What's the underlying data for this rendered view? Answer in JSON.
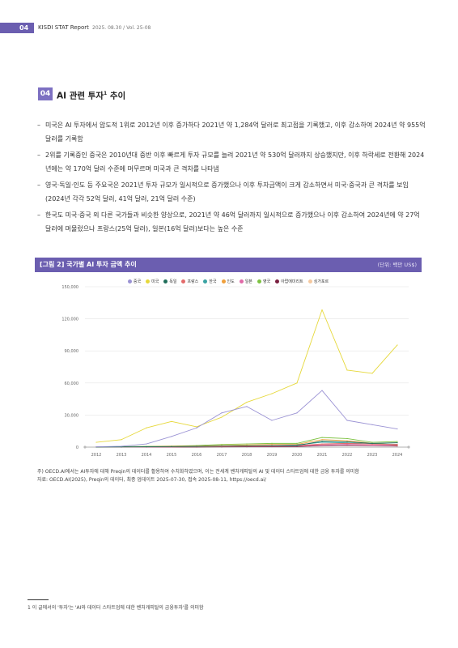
{
  "header": {
    "page_number": "04",
    "report": "KISDI STAT Report",
    "volume": "2025. 08.30 / Vol. 25-08"
  },
  "section": {
    "number": "04",
    "title": "AI 관련 투자",
    "title_sup": "1",
    "title_suffix": " 추이"
  },
  "bullets": [
    "미국은 AI 투자에서 압도적 1위로 2012년 이후 증가하다 2021년 약 1,284억 달러로 최고점을 기록했고, 이후 감소하여 2024년 약 955억 달러를 기록함",
    "2위를 기록중인 중국은 2010년대 중반 이후 빠르게 투자 규모를 늘려 2021년 약 530억 달러까지 상승했지만, 이후 하락세로 전환해 2024년에는 약 170억 달러 수준에 머무르며 미국과 큰 격차를 나타냄",
    "영국·독일·인도 등 주요국은 2021년 투자 규모가 일시적으로 증가했으나 이후 투자금액이 크게 감소하면서 미국·중국과 큰 격차를 보임(2024년 각각 52억 달러, 41억 달러, 21억 달러 수준)",
    "한국도 미국·중국 외 다른 국가들과 비슷한 양상으로, 2021년 약 46억 달러까지 일시적으로 증가했으나 이후 감소하여 2024년에 약 27억 달러에 머물렀으나 프랑스(25억 달러), 일본(16억 달러)보다는 높은 수준"
  ],
  "figure": {
    "label": "[그림 2]  국가별 AI 투자 금액 추이",
    "unit": "(단위: 백만 US$)"
  },
  "chart_data": {
    "type": "line",
    "title": "",
    "xlabel": "",
    "ylabel": "",
    "x": [
      2012,
      2013,
      2014,
      2015,
      2016,
      2017,
      2018,
      2019,
      2020,
      2021,
      2022,
      2023,
      2024
    ],
    "ylim": [
      0,
      150000
    ],
    "yticks": [
      0,
      30000,
      60000,
      90000,
      120000,
      150000
    ],
    "ytick_labels": [
      "0",
      "30,000",
      "60,000",
      "90,000",
      "120,000",
      "150,000"
    ],
    "grid": true,
    "legend_position": "top",
    "series": [
      {
        "name": "중국",
        "color": "#9b93d4",
        "values": [
          300,
          800,
          3000,
          10000,
          18000,
          32000,
          38000,
          25000,
          32000,
          53000,
          25000,
          21000,
          17000
        ]
      },
      {
        "name": "미국",
        "color": "#e6d83a",
        "values": [
          4500,
          7000,
          18000,
          24000,
          19000,
          28000,
          42000,
          50000,
          60000,
          128400,
          72000,
          69000,
          95500
        ]
      },
      {
        "name": "독일",
        "color": "#1f6e5a",
        "values": [
          100,
          200,
          300,
          500,
          700,
          1000,
          1200,
          1500,
          1500,
          5500,
          5000,
          3500,
          4100
        ]
      },
      {
        "name": "프랑스",
        "color": "#e36b6b",
        "values": [
          100,
          150,
          250,
          350,
          500,
          700,
          900,
          1200,
          1400,
          3000,
          3500,
          2800,
          2500
        ]
      },
      {
        "name": "한국",
        "color": "#3aa3a3",
        "values": [
          50,
          100,
          200,
          300,
          500,
          700,
          1000,
          1500,
          2000,
          4600,
          4000,
          3000,
          2700
        ]
      },
      {
        "name": "인도",
        "color": "#f0a03c",
        "values": [
          100,
          200,
          400,
          800,
          1000,
          1500,
          2000,
          2500,
          2500,
          7000,
          6000,
          3500,
          2100
        ]
      },
      {
        "name": "일본",
        "color": "#e06aa8",
        "values": [
          50,
          100,
          150,
          250,
          400,
          500,
          700,
          900,
          1000,
          2000,
          2500,
          1800,
          1600
        ]
      },
      {
        "name": "영국",
        "color": "#7dc242",
        "values": [
          300,
          400,
          700,
          1000,
          1500,
          2500,
          3000,
          3500,
          3500,
          9000,
          8000,
          4500,
          5200
        ]
      },
      {
        "name": "아랍에미리트",
        "color": "#7a2040",
        "values": [
          0,
          0,
          0,
          50,
          100,
          200,
          300,
          400,
          500,
          1500,
          1800,
          1500,
          1000
        ]
      },
      {
        "name": "싱가포르",
        "color": "#f5c9a0",
        "values": [
          50,
          100,
          150,
          250,
          400,
          500,
          700,
          800,
          900,
          2500,
          2000,
          1500,
          1200
        ]
      }
    ]
  },
  "notes": {
    "note": "주) OECD.AI에서는 AI투자에 대해 Preqin의 데이터를 활용하여 수치화하였으며, 이는 전세계 벤처캐피탈의 AI 및 데이터 스타트업에 대한 금융 투자를 의미함",
    "source": "자료: OECD.AI(2025), Preqin의 데이터, 최종 업데이트 2025-07-30, 접속 2025-08-11, https://oecd.ai/"
  },
  "footnote": "1 이 글에서의 '투자'는 'AI와 데이터 스타트업에 대한 벤처캐피탈의 금융투자'를 의미함"
}
